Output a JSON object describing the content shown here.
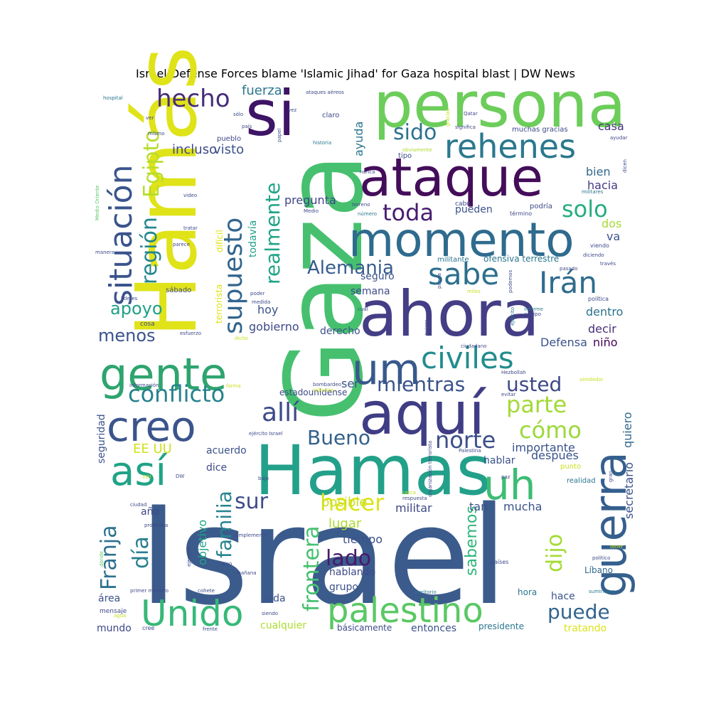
{
  "chart_data": {
    "type": "wordcloud",
    "title": "Israel Defense Forces blame 'Islamic Jihad' for Gaza hospital blast | DW News",
    "colormap": "viridis",
    "words": [
      {
        "text": "Israel",
        "weight": 190,
        "color": "#3b5b8c"
      },
      {
        "text": "Gaza",
        "weight": 150,
        "color": "#46c06f"
      },
      {
        "text": "Hamás",
        "weight": 118,
        "color": "#dfe318"
      },
      {
        "text": "Hamas",
        "weight": 96,
        "color": "#23a08a"
      },
      {
        "text": "persona",
        "weight": 88,
        "color": "#6ccd5a"
      },
      {
        "text": "ahora",
        "weight": 88,
        "color": "#433e85"
      },
      {
        "text": "aquí",
        "weight": 82,
        "color": "#3f3d85"
      },
      {
        "text": "si",
        "weight": 88,
        "color": "#3d1466"
      },
      {
        "text": "ataque",
        "weight": 74,
        "color": "#440d5a"
      },
      {
        "text": "momento",
        "weight": 66,
        "color": "#2f6b8e"
      },
      {
        "text": "gente",
        "weight": 62,
        "color": "#2ea46f"
      },
      {
        "text": "guerra",
        "weight": 62,
        "color": "#355f8d"
      },
      {
        "text": "um",
        "weight": 60,
        "color": "#38598c"
      },
      {
        "text": "creo",
        "weight": 58,
        "color": "#3a548c"
      },
      {
        "text": "uh",
        "weight": 58,
        "color": "#3dbc74"
      },
      {
        "text": "así",
        "weight": 56,
        "color": "#20a386"
      },
      {
        "text": "Unido",
        "weight": 50,
        "color": "#37b878"
      },
      {
        "text": "palestino",
        "weight": 48,
        "color": "#5ac864"
      },
      {
        "text": "rehenes",
        "weight": 46,
        "color": "#2a788e"
      },
      {
        "text": "situación",
        "weight": 44,
        "color": "#3a548c"
      },
      {
        "text": "sabe",
        "weight": 42,
        "color": "#2d708e"
      },
      {
        "text": "civiles",
        "weight": 42,
        "color": "#228c8d"
      },
      {
        "text": "Irán",
        "weight": 42,
        "color": "#2f6c8e"
      },
      {
        "text": "supuesto",
        "weight": 36,
        "color": "#32658e"
      },
      {
        "text": "hecho",
        "weight": 34,
        "color": "#472c7a"
      },
      {
        "text": "allí",
        "weight": 36,
        "color": "#3e4a89"
      },
      {
        "text": "conflicto",
        "weight": 32,
        "color": "#26828e"
      },
      {
        "text": "Egipto",
        "weight": 30,
        "color": "#b5de2b"
      },
      {
        "text": "región",
        "weight": 30,
        "color": "#24868e"
      },
      {
        "text": "realmente",
        "weight": 28,
        "color": "#20a486"
      },
      {
        "text": "sido",
        "weight": 30,
        "color": "#2c728e"
      },
      {
        "text": "solo",
        "weight": 32,
        "color": "#27ad81"
      },
      {
        "text": "toda",
        "weight": 32,
        "color": "#481d6f"
      },
      {
        "text": "parte",
        "weight": 32,
        "color": "#a2da37"
      },
      {
        "text": "cómo",
        "weight": 32,
        "color": "#9bd93c"
      },
      {
        "text": "mientras",
        "weight": 28,
        "color": "#3a538b"
      },
      {
        "text": "usted",
        "weight": 28,
        "color": "#3e4989"
      },
      {
        "text": "Bueno",
        "weight": 28,
        "color": "#34618d"
      },
      {
        "text": "norte",
        "weight": 32,
        "color": "#3c4f8a"
      },
      {
        "text": "Alemania",
        "weight": 26,
        "color": "#365c8d"
      },
      {
        "text": "apoyo",
        "weight": 24,
        "color": "#1fa088"
      },
      {
        "text": "menos",
        "weight": 24,
        "color": "#3b528b"
      },
      {
        "text": "Franja",
        "weight": 30,
        "color": "#2d718e"
      },
      {
        "text": "día",
        "weight": 30,
        "color": "#277f8e"
      },
      {
        "text": "familia",
        "weight": 28,
        "color": "#25858e"
      },
      {
        "text": "sur",
        "weight": 30,
        "color": "#3e4c8a"
      },
      {
        "text": "hacer",
        "weight": 32,
        "color": "#dde318"
      },
      {
        "text": "frontera",
        "weight": 30,
        "color": "#46c06f"
      },
      {
        "text": "lado",
        "weight": 30,
        "color": "#481a6c"
      },
      {
        "text": "dijo",
        "weight": 30,
        "color": "#a5db36"
      },
      {
        "text": "puede",
        "weight": 28,
        "color": "#32648e"
      },
      {
        "text": "sabemos",
        "weight": 22,
        "color": "#31b57b"
      },
      {
        "text": "EE UU",
        "weight": 18,
        "color": "#d0e11c"
      },
      {
        "text": "fuerza",
        "weight": 18,
        "color": "#2a768e"
      },
      {
        "text": "incluso",
        "weight": 18,
        "color": "#3e4989"
      },
      {
        "text": "visto",
        "weight": 18,
        "color": "#3b528b"
      },
      {
        "text": "posible",
        "weight": 18,
        "color": "#c8e020"
      },
      {
        "text": "lugar",
        "weight": 18,
        "color": "#addc30"
      },
      {
        "text": "ayuda",
        "weight": 16,
        "color": "#2a768e"
      },
      {
        "text": "casa",
        "weight": 16,
        "color": "#46337f"
      },
      {
        "text": "bien",
        "weight": 16,
        "color": "#31688e"
      },
      {
        "text": "hacia",
        "weight": 16,
        "color": "#443983"
      },
      {
        "text": "dos",
        "weight": 16,
        "color": "#a5db36"
      },
      {
        "text": "va",
        "weight": 16,
        "color": "#3b528b"
      },
      {
        "text": "dentro",
        "weight": 16,
        "color": "#2c728e"
      },
      {
        "text": "decir",
        "weight": 16,
        "color": "#472d7b"
      },
      {
        "text": "niño",
        "weight": 16,
        "color": "#440154"
      },
      {
        "text": "pregunta",
        "weight": 16,
        "color": "#404688"
      },
      {
        "text": "pueden",
        "weight": 14,
        "color": "#3b528b"
      },
      {
        "text": "todavía",
        "weight": 14,
        "color": "#1f9e89"
      },
      {
        "text": "semana",
        "weight": 14,
        "color": "#3e4989"
      },
      {
        "text": "seguro",
        "weight": 14,
        "color": "#3b528b"
      },
      {
        "text": "hoy",
        "weight": 16,
        "color": "#3b528b"
      },
      {
        "text": "gobierno",
        "weight": 16,
        "color": "#3e4989"
      },
      {
        "text": "derecho",
        "weight": 14,
        "color": "#3b528b"
      },
      {
        "text": "ser",
        "weight": 16,
        "color": "#3b528b"
      },
      {
        "text": "Defensa",
        "weight": 16,
        "color": "#3b528b"
      },
      {
        "text": "quiero",
        "weight": 16,
        "color": "#31688e"
      },
      {
        "text": "importante",
        "weight": 16,
        "color": "#3b528b"
      },
      {
        "text": "después",
        "weight": 16,
        "color": "#3b528b"
      },
      {
        "text": "hablar",
        "weight": 14,
        "color": "#3b528b"
      },
      {
        "text": "secretario",
        "weight": 16,
        "color": "#3b528b"
      },
      {
        "text": "acuerdo",
        "weight": 14,
        "color": "#3b528b"
      },
      {
        "text": "dice",
        "weight": 14,
        "color": "#3e4989"
      },
      {
        "text": "militar",
        "weight": 16,
        "color": "#3e4989"
      },
      {
        "text": "tan",
        "weight": 16,
        "color": "#3b528b"
      },
      {
        "text": "mucha",
        "weight": 16,
        "color": "#3b528b"
      },
      {
        "text": "tiempo",
        "weight": 16,
        "color": "#3b528b"
      },
      {
        "text": "hablando",
        "weight": 14,
        "color": "#3e4989"
      },
      {
        "text": "grupo",
        "weight": 14,
        "color": "#3b528b"
      },
      {
        "text": "objetivo",
        "weight": 16,
        "color": "#20a486"
      },
      {
        "text": "año",
        "weight": 14,
        "color": "#3e4989"
      },
      {
        "text": "área",
        "weight": 14,
        "color": "#3b528b"
      },
      {
        "text": "vida",
        "weight": 14,
        "color": "#3b528b"
      },
      {
        "text": "mundo",
        "weight": 14,
        "color": "#3e4989"
      },
      {
        "text": "cualquier",
        "weight": 14,
        "color": "#addc30"
      },
      {
        "text": "básicamente",
        "weight": 12,
        "color": "#3e4989"
      },
      {
        "text": "entonces",
        "weight": 14,
        "color": "#3b528b"
      },
      {
        "text": "presidente",
        "weight": 12,
        "color": "#2a768e"
      },
      {
        "text": "tratando",
        "weight": 14,
        "color": "#dde318"
      },
      {
        "text": "hace",
        "weight": 14,
        "color": "#3b528b"
      },
      {
        "text": "hora",
        "weight": 12,
        "color": "#2a768e"
      },
      {
        "text": "Líbano",
        "weight": 12,
        "color": "#31688e"
      },
      {
        "text": "seguridad",
        "weight": 14,
        "color": "#3b528b"
      },
      {
        "text": "estadounidense",
        "weight": 12,
        "color": "#3e4989"
      },
      {
        "text": "ofensiva terrestre",
        "weight": 12,
        "color": "#2a768e"
      },
      {
        "text": "militante",
        "weight": 10,
        "color": "#2a768e"
      },
      {
        "text": "terrorista",
        "weight": 12,
        "color": "#dde318"
      },
      {
        "text": "difícil",
        "weight": 12,
        "color": "#dde318"
      },
      {
        "text": "muchas gracias",
        "weight": 10,
        "color": "#3e4989"
      },
      {
        "text": "podría",
        "weight": 10,
        "color": "#3e4989"
      },
      {
        "text": "cabo",
        "weight": 9,
        "color": "#3e4989"
      },
      {
        "text": "término",
        "weight": 8,
        "color": "#3e4989"
      },
      {
        "text": "tipo",
        "weight": 10,
        "color": "#3e4989"
      },
      {
        "text": "claro",
        "weight": 10,
        "color": "#3e4989"
      },
      {
        "text": "pueblo",
        "weight": 10,
        "color": "#3e4989"
      },
      {
        "text": "sábado",
        "weight": 10,
        "color": "#3e4989"
      },
      {
        "text": "cosa",
        "weight": 9,
        "color": "#3e4989"
      },
      {
        "text": "realidad",
        "weight": 10,
        "color": "#2a768e"
      },
      {
        "text": "punto",
        "weight": 10,
        "color": "#c8e020"
      },
      {
        "text": "ataques aéreos",
        "weight": 7,
        "color": "#3e4989"
      },
      {
        "text": "hospital",
        "weight": 7,
        "color": "#2a768e"
      },
      {
        "text": "Qatar",
        "weight": 7,
        "color": "#3e4989"
      },
      {
        "text": "significa",
        "weight": 7,
        "color": "#3e4989"
      },
      {
        "text": "gracias",
        "weight": 7,
        "color": "#c8e020"
      },
      {
        "text": "historia",
        "weight": 7,
        "color": "#2a768e"
      },
      {
        "text": "obviamente",
        "weight": 7,
        "color": "#addc30"
      },
      {
        "text": "ayudar",
        "weight": 7,
        "color": "#3e4989"
      },
      {
        "text": "dicen",
        "weight": 7,
        "color": "#3e4989"
      },
      {
        "text": "nunca",
        "weight": 7,
        "color": "#3e4989"
      },
      {
        "text": "militares",
        "weight": 7,
        "color": "#2a768e"
      },
      {
        "text": "Medio Oriente",
        "weight": 7,
        "color": "#5ac864"
      },
      {
        "text": "video",
        "weight": 7,
        "color": "#3e4989"
      },
      {
        "text": "tratar",
        "weight": 7,
        "color": "#3e4989"
      },
      {
        "text": "parece",
        "weight": 7,
        "color": "#3e4989"
      },
      {
        "text": "manera",
        "weight": 7,
        "color": "#3e4989"
      },
      {
        "text": "viendo",
        "weight": 8,
        "color": "#3e4989"
      },
      {
        "text": "diciendo",
        "weight": 7,
        "color": "#3e4989"
      },
      {
        "text": "través",
        "weight": 7,
        "color": "#3e4989"
      },
      {
        "text": "pasado",
        "weight": 7,
        "color": "#3e4989"
      },
      {
        "text": "política",
        "weight": 8,
        "color": "#3e4989"
      },
      {
        "text": "informe",
        "weight": 7,
        "color": "#2a768e"
      },
      {
        "text": "equipo",
        "weight": 7,
        "color": "#3e4989"
      },
      {
        "text": "ejército",
        "weight": 7,
        "color": "#2a768e"
      },
      {
        "text": "ciudadano",
        "weight": 7,
        "color": "#3e4989"
      },
      {
        "text": "Hezbollah",
        "weight": 7,
        "color": "#3e4989"
      },
      {
        "text": "evitar",
        "weight": 7,
        "color": "#3e4989"
      },
      {
        "text": "alrededor",
        "weight": 7,
        "color": "#c8e020"
      },
      {
        "text": "gran",
        "weight": 7,
        "color": "#3e4989"
      },
      {
        "text": "paz",
        "weight": 7,
        "color": "#3e4989"
      },
      {
        "text": "tener",
        "weight": 7,
        "color": "#c8e020"
      },
      {
        "text": "político",
        "weight": 7,
        "color": "#3e4989"
      },
      {
        "text": "suministro",
        "weight": 7,
        "color": "#2a768e"
      },
      {
        "text": "lideres",
        "weight": 7,
        "color": "#3e4989"
      },
      {
        "text": "esfuerzo",
        "weight": 7,
        "color": "#3e4989"
      },
      {
        "text": "información",
        "weight": 7,
        "color": "#3e4989"
      },
      {
        "text": "ciudad",
        "weight": 7,
        "color": "#3e4989"
      },
      {
        "text": "problema",
        "weight": 7,
        "color": "#3e4989"
      },
      {
        "text": "dónde",
        "weight": 7,
        "color": "#5ac864"
      },
      {
        "text": "ejemplo",
        "weight": 7,
        "color": "#3e4989"
      },
      {
        "text": "sino",
        "weight": 7,
        "color": "#3e4989"
      },
      {
        "text": "mañana",
        "weight": 7,
        "color": "#3e4989"
      },
      {
        "text": "simplemente",
        "weight": 7,
        "color": "#3e4989"
      },
      {
        "text": "primer ministro",
        "weight": 7,
        "color": "#3e4989"
      },
      {
        "text": "cohete",
        "weight": 7,
        "color": "#3e4989"
      },
      {
        "text": "siendo",
        "weight": 7,
        "color": "#3e4989"
      },
      {
        "text": "mensaje",
        "weight": 9,
        "color": "#3e4989"
      },
      {
        "text": "cree",
        "weight": 8,
        "color": "#3e4989"
      },
      {
        "text": "frente",
        "weight": 7,
        "color": "#3e4989"
      },
      {
        "text": "agua",
        "weight": 7,
        "color": "#c8e020"
      },
      {
        "text": "territorio",
        "weight": 7,
        "color": "#2a768e"
      },
      {
        "text": "respuesta",
        "weight": 7,
        "color": "#3e4989"
      },
      {
        "text": "cerca",
        "weight": 7,
        "color": "#c8e020"
      },
      {
        "text": "países",
        "weight": 8,
        "color": "#3e4989"
      },
      {
        "text": "ejército Israel",
        "weight": 7,
        "color": "#3e4989"
      },
      {
        "text": "organización terrorista",
        "weight": 7,
        "color": "#3e4989"
      },
      {
        "text": "Palestina",
        "weight": 7,
        "color": "#3e4989"
      },
      {
        "text": "bombardeo",
        "weight": 7,
        "color": "#3e4989"
      },
      {
        "text": "millones",
        "weight": 7,
        "color": "#c8e020"
      },
      {
        "text": "forma",
        "weight": 7,
        "color": "#c8e020"
      },
      {
        "text": "dicho",
        "weight": 7,
        "color": "#c8e020"
      },
      {
        "text": "poder",
        "weight": 7,
        "color": "#3e4989"
      },
      {
        "text": "medida",
        "weight": 7,
        "color": "#3e4989"
      },
      {
        "text": "cuál",
        "weight": 7,
        "color": "#3e4989"
      },
      {
        "text": "quiere",
        "weight": 7,
        "color": "#3e4989"
      },
      {
        "text": "pueda",
        "weight": 7,
        "color": "#3e4989"
      },
      {
        "text": "podemos",
        "weight": 7,
        "color": "#3e4989"
      },
      {
        "text": "miles",
        "weight": 7,
        "color": "#c8e020"
      },
      {
        "text": "FDI",
        "weight": 7,
        "color": "#c8e020"
      },
      {
        "text": "DW",
        "weight": 7,
        "color": "#3e4989"
      },
      {
        "text": "bajo",
        "weight": 7,
        "color": "#3e4989"
      },
      {
        "text": "Medio",
        "weight": 7,
        "color": "#3e4989"
      },
      {
        "text": "número",
        "weight": 7,
        "color": "#2a768e"
      },
      {
        "text": "terreno",
        "weight": 7,
        "color": "#3e4989"
      },
      {
        "text": "papel",
        "weight": 7,
        "color": "#3e4989"
      },
      {
        "text": "vez",
        "weight": 7,
        "color": "#3e4989"
      },
      {
        "text": "sólo",
        "weight": 7,
        "color": "#3e4989"
      },
      {
        "text": "país",
        "weight": 7,
        "color": "#3e4989"
      },
      {
        "text": "mismo",
        "weight": 7,
        "color": "#3e4989"
      },
      {
        "text": "ver",
        "weight": 7,
        "color": "#3e4989"
      }
    ]
  }
}
